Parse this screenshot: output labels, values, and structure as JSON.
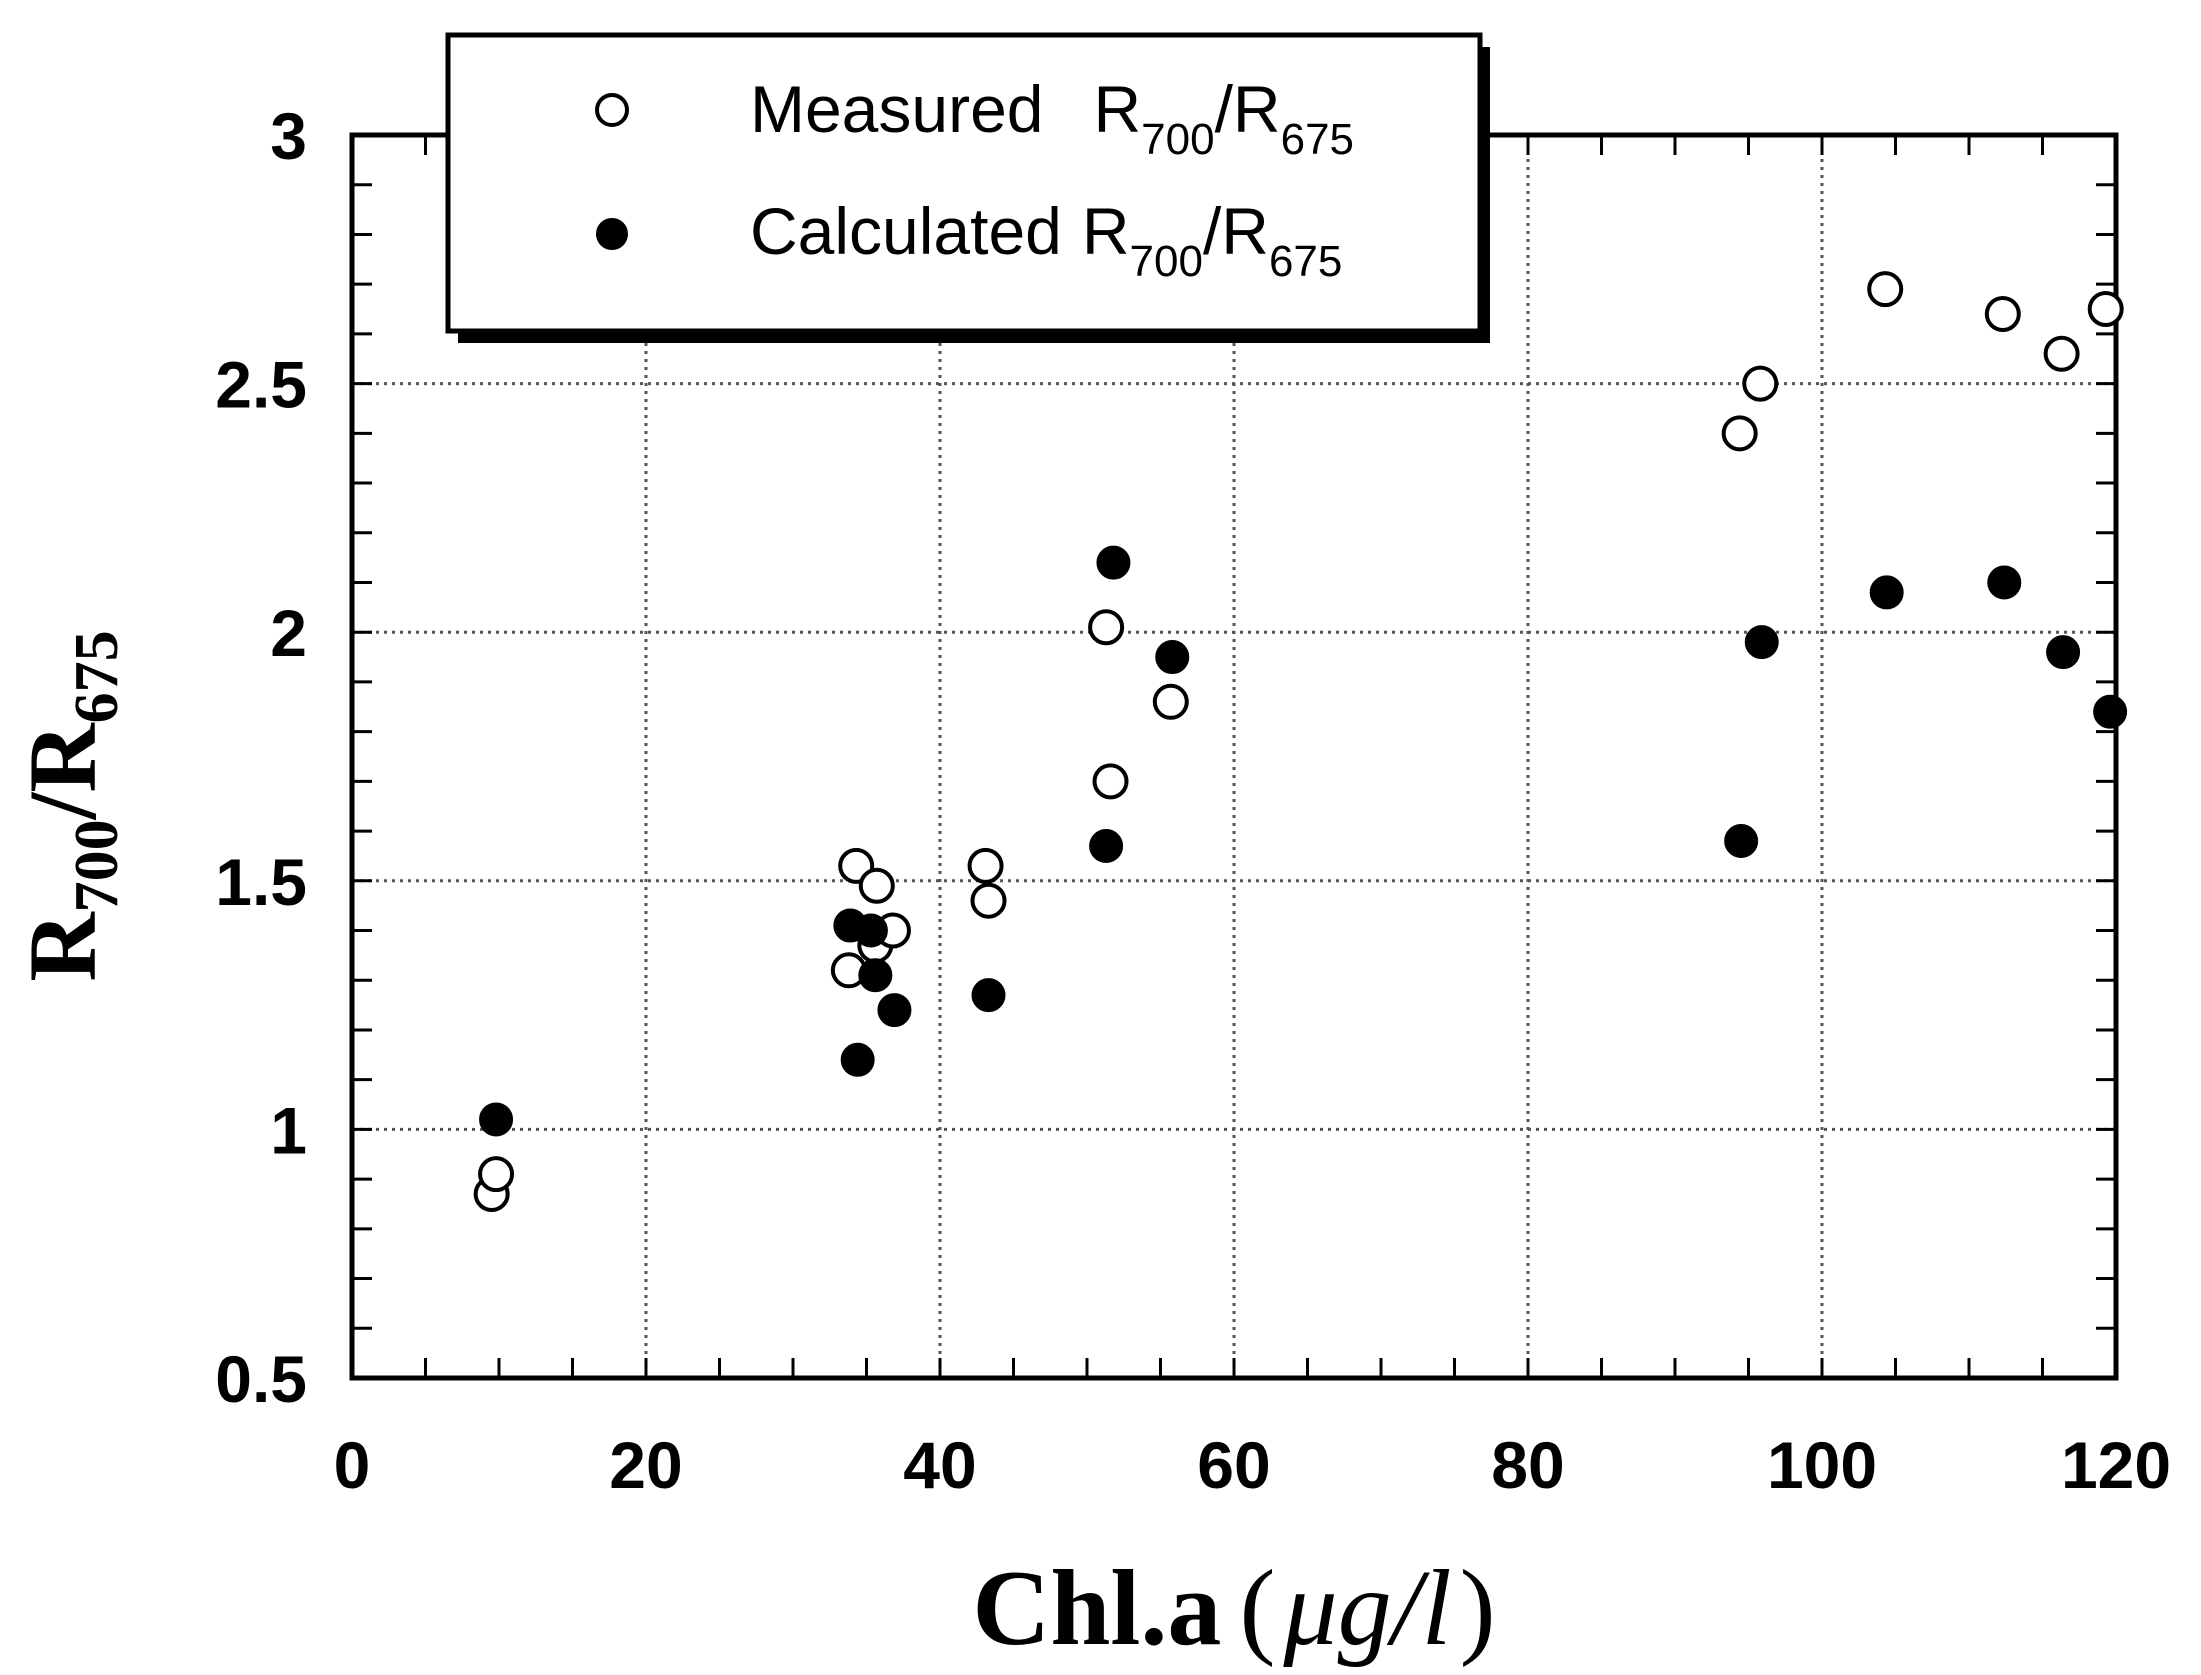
{
  "chart_data": {
    "type": "scatter",
    "title": "",
    "xlabel": "Chl.a",
    "xlabel_unit_parts": [
      "(",
      "μg",
      "/",
      "l",
      ")"
    ],
    "ylabel_parts": [
      "R",
      "700",
      "/R",
      "675"
    ],
    "xlim": [
      0,
      120
    ],
    "ylim": [
      0.5,
      3
    ],
    "x_ticks": [
      0,
      20,
      40,
      60,
      80,
      100,
      120
    ],
    "x_tick_labels": [
      "0",
      "20",
      "40",
      "60",
      "80",
      "100",
      "120"
    ],
    "y_ticks": [
      0.5,
      1,
      1.5,
      2,
      2.5,
      3
    ],
    "y_tick_labels": [
      "0.5",
      "1",
      "1.5",
      "2",
      "2.5",
      "3"
    ],
    "grid": true,
    "legend_position": "top-left",
    "series": [
      {
        "name": "Measured R700/R675",
        "label_parts": [
          "Measured",
          "R",
          "700",
          "/R",
          "675"
        ],
        "marker": "open-circle",
        "points": [
          [
            9.5,
            0.87
          ],
          [
            9.8,
            0.91
          ],
          [
            33.8,
            1.32
          ],
          [
            34.3,
            1.53
          ],
          [
            35.7,
            1.49
          ],
          [
            35.6,
            1.37
          ],
          [
            36.8,
            1.4
          ],
          [
            43.1,
            1.53
          ],
          [
            43.3,
            1.46
          ],
          [
            51.3,
            2.01
          ],
          [
            51.6,
            1.7
          ],
          [
            55.7,
            1.86
          ],
          [
            94.4,
            2.4
          ],
          [
            95.8,
            2.5
          ],
          [
            104.3,
            2.69
          ],
          [
            112.3,
            2.64
          ],
          [
            116.3,
            2.56
          ],
          [
            119.3,
            2.65
          ]
        ]
      },
      {
        "name": "Calculated R700/R675",
        "label_parts": [
          "Calculated",
          "R",
          "700",
          "/R",
          "675"
        ],
        "marker": "filled-circle",
        "points": [
          [
            9.8,
            1.02
          ],
          [
            33.9,
            1.41
          ],
          [
            34.4,
            1.14
          ],
          [
            35.3,
            1.4
          ],
          [
            35.6,
            1.31
          ],
          [
            36.9,
            1.24
          ],
          [
            43.3,
            1.27
          ],
          [
            51.3,
            1.57
          ],
          [
            51.8,
            2.14
          ],
          [
            55.8,
            1.95
          ],
          [
            94.5,
            1.58
          ],
          [
            95.9,
            1.98
          ],
          [
            104.4,
            2.08
          ],
          [
            112.4,
            2.1
          ],
          [
            116.4,
            1.96
          ],
          [
            119.6,
            1.84
          ]
        ]
      }
    ]
  }
}
